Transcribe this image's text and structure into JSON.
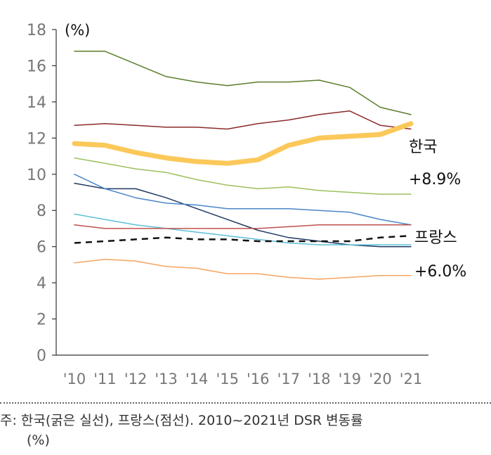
{
  "chart_data": {
    "type": "line",
    "unit_label": "(%)",
    "categories": [
      "'10",
      "'11",
      "'12",
      "'13",
      "'14",
      "'15",
      "'16",
      "'17",
      "'18",
      "'19",
      "'20",
      "'21"
    ],
    "ylim": [
      0,
      18
    ],
    "yticks": [
      0,
      2,
      4,
      6,
      8,
      10,
      12,
      14,
      16,
      18
    ],
    "grid": false,
    "series": [
      {
        "color": "#5a7d2a",
        "width": 1.5,
        "dash": false,
        "highlight": false,
        "values": [
          16.8,
          16.8,
          16.1,
          15.4,
          15.1,
          14.9,
          15.1,
          15.1,
          15.2,
          14.8,
          13.7,
          13.3
        ]
      },
      {
        "color": "#8b2a2a",
        "width": 1.5,
        "dash": false,
        "highlight": false,
        "values": [
          12.7,
          12.8,
          12.7,
          12.6,
          12.6,
          12.5,
          12.8,
          13.0,
          13.3,
          13.5,
          12.7,
          12.5
        ]
      },
      {
        "name": "한국",
        "color": "#fbc85a",
        "width": 7,
        "dash": false,
        "highlight": true,
        "values": [
          11.7,
          11.6,
          11.2,
          10.9,
          10.7,
          10.6,
          10.8,
          11.6,
          12.0,
          12.1,
          12.2,
          12.8
        ]
      },
      {
        "color": "#9cc15c",
        "width": 1.5,
        "dash": false,
        "highlight": false,
        "values": [
          10.9,
          10.6,
          10.3,
          10.1,
          9.7,
          9.4,
          9.2,
          9.3,
          9.1,
          9.0,
          8.9,
          8.9
        ]
      },
      {
        "color": "#1f3864",
        "width": 1.5,
        "dash": false,
        "highlight": false,
        "values": [
          9.5,
          9.2,
          9.2,
          8.7,
          8.1,
          7.5,
          6.9,
          6.5,
          6.3,
          6.1,
          6.0,
          6.0
        ]
      },
      {
        "color": "#4a86c8",
        "width": 1.5,
        "dash": false,
        "highlight": false,
        "values": [
          10.0,
          9.2,
          8.7,
          8.4,
          8.3,
          8.1,
          8.1,
          8.1,
          8.0,
          7.9,
          7.5,
          7.2
        ]
      },
      {
        "color": "#5bc0d8",
        "width": 1.5,
        "dash": false,
        "highlight": false,
        "values": [
          7.8,
          7.5,
          7.2,
          7.0,
          6.8,
          6.6,
          6.4,
          6.2,
          6.1,
          6.1,
          6.1,
          6.1
        ]
      },
      {
        "color": "#c0504d",
        "width": 1.5,
        "dash": false,
        "highlight": false,
        "values": [
          7.2,
          7.0,
          7.0,
          7.0,
          7.0,
          7.0,
          7.0,
          7.1,
          7.2,
          7.2,
          7.2,
          7.2
        ]
      },
      {
        "name": "프랑스",
        "color": "#111111",
        "width": 2.5,
        "dash": true,
        "highlight": false,
        "values": [
          6.2,
          6.3,
          6.4,
          6.5,
          6.4,
          6.4,
          6.3,
          6.3,
          6.3,
          6.3,
          6.5,
          6.6
        ]
      },
      {
        "color": "#f4a460",
        "width": 1.5,
        "dash": false,
        "highlight": false,
        "values": [
          5.1,
          5.3,
          5.2,
          4.9,
          4.8,
          4.5,
          4.5,
          4.3,
          4.2,
          4.3,
          4.4,
          4.4
        ]
      }
    ],
    "annotations": {
      "korea_name": "한국",
      "korea_change": "+8.9%",
      "france_name": "프랑스",
      "france_change": "+6.0%"
    }
  },
  "footnote": {
    "line1": "주: 한국(굵은 실선), 프랑스(점선). 2010~2021년 DSR 변동률",
    "line2": "(%)"
  }
}
